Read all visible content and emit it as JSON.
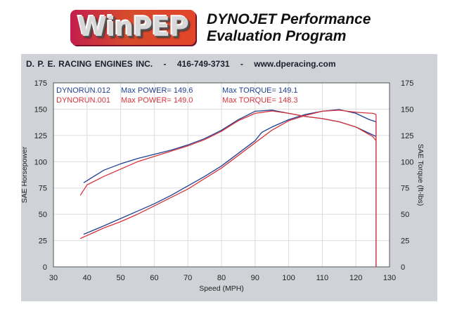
{
  "logo": {
    "text": "WinPEP"
  },
  "subtitle": {
    "line1": "DYNOJET Performance",
    "line2": "Evaluation Program"
  },
  "header": {
    "company": "D. P. E. RACING ENGINES INC.",
    "sep": "-",
    "phone": "416-749-3731",
    "website": "www.dperacing.com"
  },
  "colors": {
    "run1": "#1f3f8f",
    "run2": "#d8333c",
    "frame": "#cfd3d8"
  },
  "chart_data": {
    "type": "line",
    "xlabel": "Speed (MPH)",
    "ylabel": "SAE Horsepower",
    "y2label": "SAE Torque (ft-lbs)",
    "xlim": [
      30,
      130
    ],
    "ylim": [
      0,
      175
    ],
    "y2lim": [
      0,
      175
    ],
    "xticks": [
      "30",
      "40",
      "50",
      "60",
      "70",
      "80",
      "90",
      "100",
      "110",
      "120",
      "130"
    ],
    "yticks": [
      "0",
      "25",
      "50",
      "75",
      "100",
      "125",
      "150",
      "175"
    ],
    "legend": [
      {
        "run": "DYNORUN.012",
        "power_label": "Max POWER= 149.6",
        "torque_label": "Max TORQUE= 149.1"
      },
      {
        "run": "DYNORUN.001",
        "power_label": "Max POWER= 149.0",
        "torque_label": "Max TORQUE= 148.3"
      }
    ],
    "series": [
      {
        "name": "DYNORUN.012 Power",
        "run": 0,
        "x": [
          39,
          45,
          50,
          55,
          60,
          65,
          70,
          75,
          80,
          85,
          90,
          92,
          95,
          100,
          105,
          110,
          115,
          120,
          124,
          126
        ],
        "y": [
          31,
          39,
          46,
          53,
          60,
          68,
          77,
          86,
          96,
          108,
          120,
          128,
          133,
          140,
          145,
          148,
          149.6,
          146,
          140,
          138
        ]
      },
      {
        "name": "DYNORUN.012 Torque",
        "run": 0,
        "x": [
          39,
          42,
          45,
          50,
          55,
          60,
          65,
          70,
          75,
          80,
          85,
          90,
          95,
          100,
          105,
          110,
          115,
          120,
          124,
          126
        ],
        "y": [
          80,
          86,
          92,
          98,
          103,
          107,
          111,
          116,
          122,
          130,
          140,
          148,
          149.1,
          146,
          143,
          141,
          138,
          133,
          127,
          124
        ]
      },
      {
        "name": "DYNORUN.001 Power",
        "run": 1,
        "x": [
          38,
          45,
          50,
          55,
          60,
          65,
          70,
          75,
          80,
          85,
          90,
          95,
          100,
          105,
          110,
          115,
          120,
          125,
          126
        ],
        "y": [
          27,
          37,
          43,
          50,
          58,
          66,
          74,
          84,
          94,
          106,
          118,
          130,
          139,
          144,
          148,
          149.0,
          147,
          146,
          145
        ]
      },
      {
        "name": "DYNORUN.001 Torque",
        "run": 1,
        "x": [
          38,
          40,
          45,
          50,
          55,
          60,
          65,
          70,
          75,
          80,
          85,
          90,
          95,
          100,
          105,
          110,
          115,
          120,
          125,
          126
        ],
        "y": [
          68,
          78,
          86,
          93,
          100,
          105,
          110,
          115,
          121,
          129,
          139,
          146,
          148.3,
          146,
          143,
          141,
          138,
          133,
          124,
          120
        ]
      }
    ]
  }
}
